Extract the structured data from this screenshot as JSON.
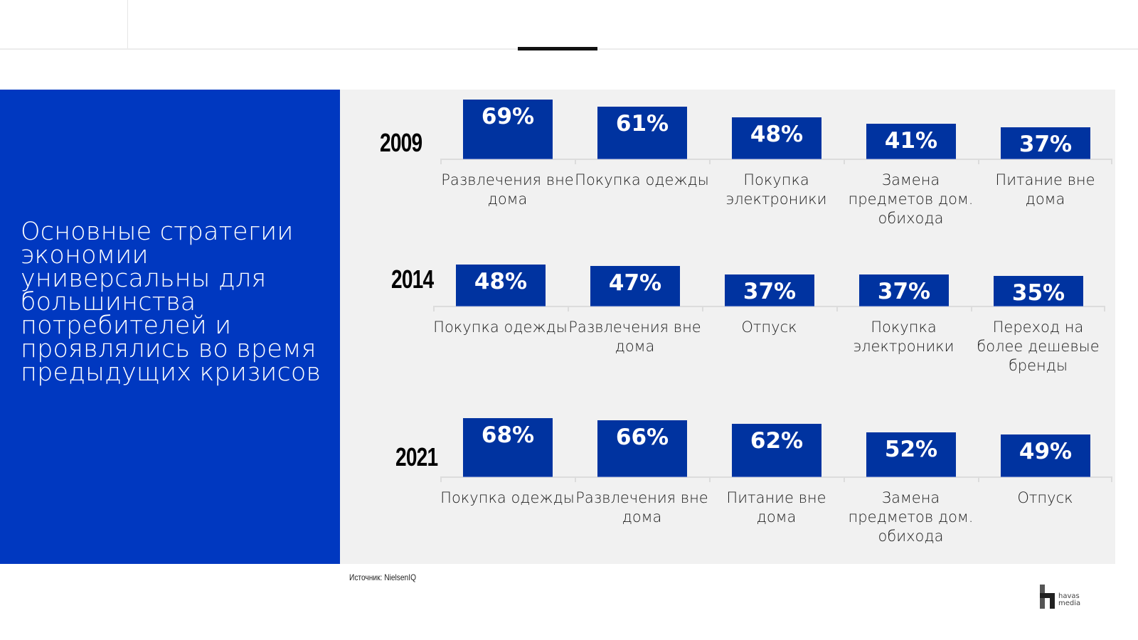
{
  "left_panel": {
    "title": "Основные стратегии экономии универсальны для большинства потребителей и проявлялись во время предыдущих кризисов"
  },
  "footer": {
    "source": "Источник: NielsenIQ",
    "logo_line1": "havas",
    "logo_line2": "media"
  },
  "colors": {
    "bar": "#0033a0",
    "panel": "#0038c0",
    "background": "#f1f1f1"
  },
  "chart_data": [
    {
      "type": "bar",
      "title": "2009",
      "categories": [
        "Развлечения вне дома",
        "Покупка одежды",
        "Покупка электроники",
        "Замена предметов дом. обихода",
        "Питание вне дома"
      ],
      "values": [
        69,
        61,
        48,
        41,
        37
      ],
      "labels": [
        "69%",
        "61%",
        "48%",
        "41%",
        "37%"
      ],
      "ylim": [
        0,
        100
      ],
      "grid": false
    },
    {
      "type": "bar",
      "title": "2014",
      "categories": [
        "Покупка одежды",
        "Развлечения вне дома",
        "Отпуск",
        "Покупка электроники",
        "Переход на более дешевые бренды"
      ],
      "values": [
        48,
        47,
        37,
        37,
        35
      ],
      "labels": [
        "48%",
        "47%",
        "37%",
        "37%",
        "35%"
      ],
      "ylim": [
        0,
        100
      ],
      "grid": false
    },
    {
      "type": "bar",
      "title": "2021",
      "categories": [
        "Покупка одежды",
        "Развлечения вне дома",
        "Питание вне дома",
        "Замена предметов дом. обихода",
        "Отпуск"
      ],
      "values": [
        68,
        66,
        62,
        52,
        49
      ],
      "labels": [
        "68%",
        "66%",
        "62%",
        "52%",
        "49%"
      ],
      "ylim": [
        0,
        100
      ],
      "grid": false
    }
  ]
}
